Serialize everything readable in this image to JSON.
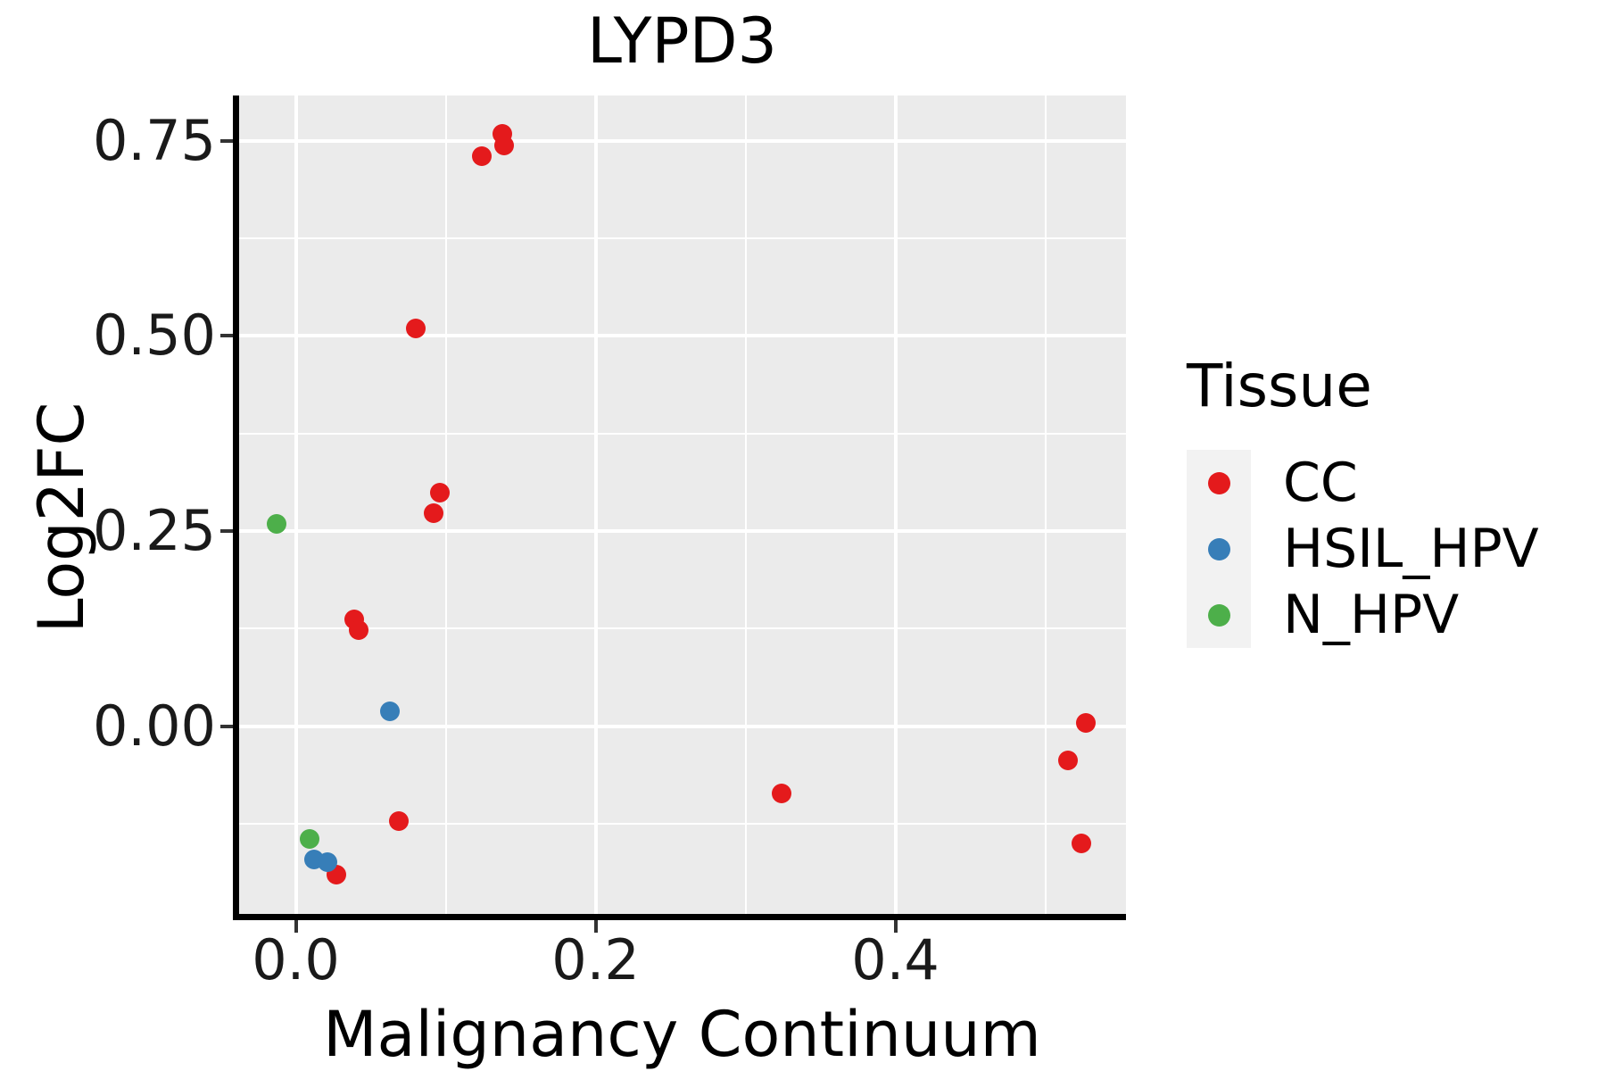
{
  "chart_data": {
    "type": "scatter",
    "title": "LYPD3",
    "xlabel": "Malignancy Continuum",
    "ylabel": "Log2FC",
    "legend_title": "Tissue",
    "legend_position": "right",
    "grid": "on",
    "panel_background": "#EBEBEB",
    "gridline_color": "#ffffff",
    "xlim": [
      -0.038,
      0.554
    ],
    "ylim": [
      -0.241,
      0.808
    ],
    "x_ticks": [
      0.0,
      0.2,
      0.4
    ],
    "x_tick_labels": [
      "0.0",
      "0.2",
      "0.4"
    ],
    "x_minor_ticks": [
      0.1,
      0.3,
      0.5
    ],
    "y_ticks": [
      0.75,
      0.5,
      0.25,
      0.0
    ],
    "y_tick_labels": [
      "0.75",
      "0.50",
      "0.25",
      "0.00"
    ],
    "y_minor_ticks": [
      0.625,
      0.375,
      0.125,
      -0.125
    ],
    "series": [
      {
        "name": "CC",
        "color": "#E41A1C",
        "points": [
          {
            "x": 0.124,
            "y": 0.73
          },
          {
            "x": 0.138,
            "y": 0.759
          },
          {
            "x": 0.139,
            "y": 0.744
          },
          {
            "x": 0.08,
            "y": 0.51
          },
          {
            "x": 0.096,
            "y": 0.299
          },
          {
            "x": 0.092,
            "y": 0.273
          },
          {
            "x": 0.039,
            "y": 0.137
          },
          {
            "x": 0.042,
            "y": 0.123
          },
          {
            "x": 0.069,
            "y": -0.122
          },
          {
            "x": 0.027,
            "y": -0.19
          },
          {
            "x": 0.324,
            "y": -0.086
          },
          {
            "x": 0.527,
            "y": 0.004
          },
          {
            "x": 0.515,
            "y": -0.044
          },
          {
            "x": 0.524,
            "y": -0.15
          }
        ]
      },
      {
        "name": "HSIL_HPV",
        "color": "#377EB8",
        "points": [
          {
            "x": 0.063,
            "y": 0.019
          },
          {
            "x": 0.012,
            "y": -0.171
          },
          {
            "x": 0.021,
            "y": -0.174
          }
        ]
      },
      {
        "name": "N_HPV",
        "color": "#4DAF4A",
        "points": [
          {
            "x": -0.013,
            "y": 0.259
          },
          {
            "x": 0.009,
            "y": -0.145
          }
        ]
      }
    ]
  }
}
